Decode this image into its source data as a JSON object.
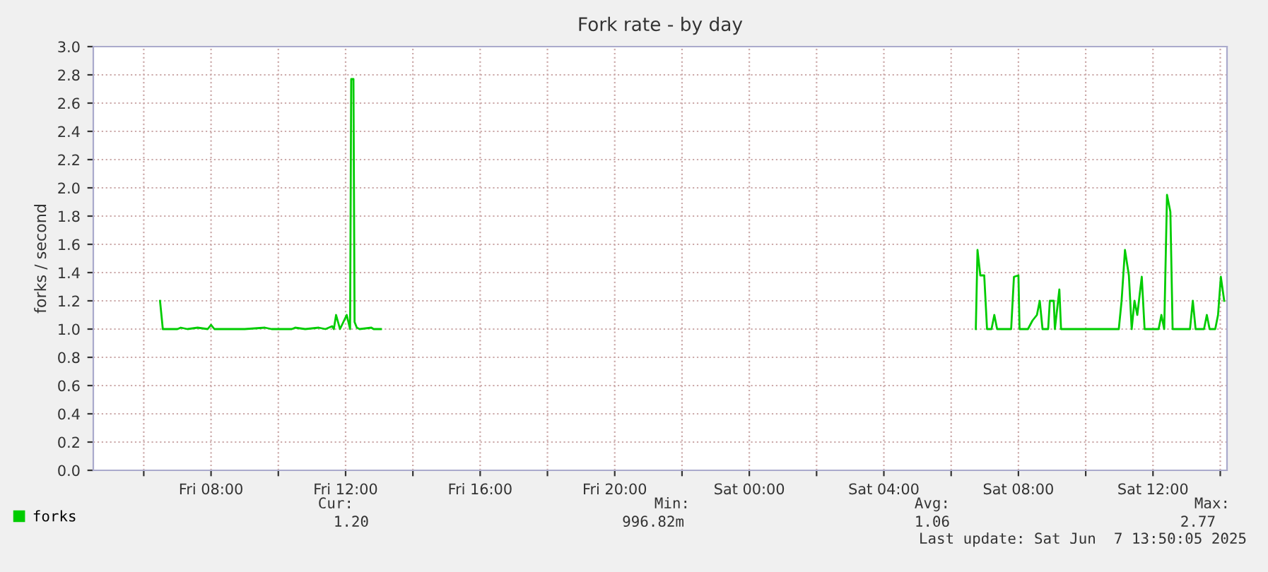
{
  "chart_data": {
    "type": "line",
    "title": "Fork rate - by day",
    "ylabel": "forks / second",
    "xlim": [
      "2025-06-06T04:30",
      "2025-06-07T14:12"
    ],
    "xticks": [
      {
        "value": "2025-06-06T06:00",
        "label": null
      },
      {
        "value": "2025-06-06T08:00",
        "label": "Fri 08:00"
      },
      {
        "value": "2025-06-06T10:00",
        "label": null
      },
      {
        "value": "2025-06-06T12:00",
        "label": "Fri 12:00"
      },
      {
        "value": "2025-06-06T14:00",
        "label": null
      },
      {
        "value": "2025-06-06T16:00",
        "label": "Fri 16:00"
      },
      {
        "value": "2025-06-06T18:00",
        "label": null
      },
      {
        "value": "2025-06-06T20:00",
        "label": "Fri 20:00"
      },
      {
        "value": "2025-06-06T22:00",
        "label": null
      },
      {
        "value": "2025-06-07T00:00",
        "label": "Sat 00:00"
      },
      {
        "value": "2025-06-07T02:00",
        "label": null
      },
      {
        "value": "2025-06-07T04:00",
        "label": "Sat 04:00"
      },
      {
        "value": "2025-06-07T06:00",
        "label": null
      },
      {
        "value": "2025-06-07T08:00",
        "label": "Sat 08:00"
      },
      {
        "value": "2025-06-07T10:00",
        "label": null
      },
      {
        "value": "2025-06-07T12:00",
        "label": "Sat 12:00"
      },
      {
        "value": "2025-06-07T14:00",
        "label": null
      }
    ],
    "ylim": [
      0,
      3.0
    ],
    "yticks": [
      {
        "value": 0,
        "label": "0.0"
      },
      {
        "value": 0.2,
        "label": "0.2"
      },
      {
        "value": 0.4,
        "label": "0.4"
      },
      {
        "value": 0.6,
        "label": "0.6"
      },
      {
        "value": 0.8,
        "label": "0.8"
      },
      {
        "value": 1.0,
        "label": "1.0"
      },
      {
        "value": 1.2,
        "label": "1.2"
      },
      {
        "value": 1.4,
        "label": "1.4"
      },
      {
        "value": 1.6,
        "label": "1.6"
      },
      {
        "value": 1.8,
        "label": "1.8"
      },
      {
        "value": 2.0,
        "label": "2.0"
      },
      {
        "value": 2.2,
        "label": "2.2"
      },
      {
        "value": 2.4,
        "label": "2.4"
      },
      {
        "value": 2.6,
        "label": "2.6"
      },
      {
        "value": 2.8,
        "label": "2.8"
      },
      {
        "value": 3.0,
        "label": "3.0"
      }
    ],
    "grid": true,
    "legend": "bottom left",
    "marker": "none",
    "line_style": "solid",
    "series": [
      {
        "name": "forks",
        "color": "#00cc00",
        "x": [
          "2025-06-06T06:29",
          "2025-06-06T06:34",
          "2025-06-06T07:00",
          "2025-06-06T07:06",
          "2025-06-06T07:18",
          "2025-06-06T07:36",
          "2025-06-06T07:54",
          "2025-06-06T08:00",
          "2025-06-06T08:06",
          "2025-06-06T09:00",
          "2025-06-06T09:36",
          "2025-06-06T09:48",
          "2025-06-06T10:24",
          "2025-06-06T10:30",
          "2025-06-06T10:48",
          "2025-06-06T11:12",
          "2025-06-06T11:24",
          "2025-06-06T11:36",
          "2025-06-06T11:39",
          "2025-06-06T11:43",
          "2025-06-06T11:50",
          "2025-06-06T12:02",
          "2025-06-06T12:08",
          "2025-06-06T12:10",
          "2025-06-06T12:14",
          "2025-06-06T12:16",
          "2025-06-06T12:20",
          "2025-06-06T12:25",
          "2025-06-06T12:46",
          "2025-06-06T12:50",
          "2025-06-06T13:03",
          "2025-06-06T13:06",
          "2025-06-07T06:44",
          "2025-06-07T06:47",
          "2025-06-07T06:52",
          "2025-06-07T06:59",
          "2025-06-07T07:04",
          "2025-06-07T07:12",
          "2025-06-07T07:17",
          "2025-06-07T07:22",
          "2025-06-07T07:47",
          "2025-06-07T07:52",
          "2025-06-07T08:00",
          "2025-06-07T08:02",
          "2025-06-07T08:17",
          "2025-06-07T08:25",
          "2025-06-07T08:33",
          "2025-06-07T08:38",
          "2025-06-07T08:43",
          "2025-06-07T08:53",
          "2025-06-07T08:56",
          "2025-06-07T09:03",
          "2025-06-07T09:05",
          "2025-06-07T09:13",
          "2025-06-07T09:16",
          "2025-06-07T09:44",
          "2025-06-07T10:34",
          "2025-06-07T10:59",
          "2025-06-07T11:04",
          "2025-06-07T11:10",
          "2025-06-07T11:17",
          "2025-06-07T11:22",
          "2025-06-07T11:27",
          "2025-06-07T11:32",
          "2025-06-07T11:40",
          "2025-06-07T11:45",
          "2025-06-07T12:10",
          "2025-06-07T12:15",
          "2025-06-07T12:20",
          "2025-06-07T12:25",
          "2025-06-07T12:31",
          "2025-06-07T12:35",
          "2025-06-07T13:06",
          "2025-06-07T13:11",
          "2025-06-07T13:16",
          "2025-06-07T13:31",
          "2025-06-07T13:36",
          "2025-06-07T13:41",
          "2025-06-07T13:51",
          "2025-06-07T13:56",
          "2025-06-07T14:01",
          "2025-06-07T14:07"
        ],
        "values": [
          1.2,
          1.0,
          1.0,
          1.01,
          1.0,
          1.01,
          1.0,
          1.03,
          1.0,
          1.0,
          1.01,
          1.0,
          1.0,
          1.01,
          1.0,
          1.01,
          1.0,
          1.02,
          1.0,
          1.1,
          1.0,
          1.1,
          1.0,
          2.77,
          2.77,
          1.05,
          1.01,
          1.0,
          1.01,
          1.0,
          1.0,
          null,
          1.0,
          1.56,
          1.38,
          1.38,
          1.0,
          1.0,
          1.1,
          1.0,
          1.0,
          1.37,
          1.38,
          1.0,
          1.0,
          1.06,
          1.1,
          1.2,
          1.0,
          1.0,
          1.2,
          1.2,
          1.0,
          1.28,
          1.0,
          1.0,
          1.0,
          1.0,
          1.2,
          1.56,
          1.38,
          1.0,
          1.2,
          1.1,
          1.37,
          1.0,
          1.0,
          1.1,
          1.0,
          1.95,
          1.83,
          1.0,
          1.0,
          1.2,
          1.0,
          1.0,
          1.1,
          1.0,
          1.0,
          1.1,
          1.37,
          1.2
        ]
      }
    ],
    "annotations": [
      "Cur:",
      "1.20",
      "Min:",
      "996.82m",
      "Avg:",
      "1.06",
      "Max:",
      "2.77",
      "Last update: Sat Jun  7 13:50:05 2025"
    ]
  }
}
